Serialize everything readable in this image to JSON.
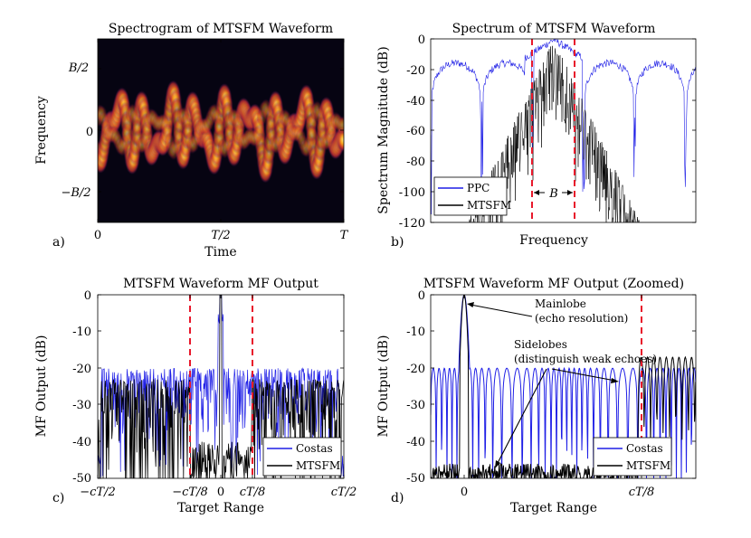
{
  "colors": {
    "blue": "#1f1fe6",
    "black": "#000000",
    "red": "#e8182b"
  },
  "chart_data": [
    {
      "type": "heatmap",
      "panel": "a)",
      "title": "Spectrogram of MTSFM Waveform",
      "xlabel": "Time",
      "ylabel": "Frequency",
      "xticks": [
        "0",
        "T/2",
        "T"
      ],
      "yticks": [
        "B/2",
        "0",
        "−B/2"
      ],
      "xlim": [
        0,
        1
      ],
      "ylim": [
        -0.6,
        0.6
      ]
    },
    {
      "type": "line",
      "panel": "b)",
      "title": "Spectrum of MTSFM Waveform",
      "xlabel": "Frequency",
      "ylabel": "Spectrum Magnitude (dB)",
      "ylim": [
        -120,
        0
      ],
      "yticks": [
        "0",
        "-20",
        "-40",
        "-60",
        "-80",
        "-100",
        "-120"
      ],
      "series": [
        {
          "name": "PPC",
          "color": "blue"
        },
        {
          "name": "MTSFM",
          "color": "black"
        }
      ],
      "annotations": [
        "B"
      ],
      "markers": [
        -0.5,
        0.5
      ]
    },
    {
      "type": "line",
      "panel": "c)",
      "title": "MTSFM Waveform MF Output",
      "xlabel": "Target Range",
      "ylabel": "MF Output (dB)",
      "ylim": [
        -50,
        0
      ],
      "yticks": [
        "0",
        "-10",
        "-20",
        "-30",
        "-40",
        "-50"
      ],
      "xticks": [
        "−cT/2",
        "−cT/8",
        "0",
        "cT/8",
        "cT/2"
      ],
      "series": [
        {
          "name": "Costas",
          "color": "blue"
        },
        {
          "name": "MTSFM",
          "color": "black"
        }
      ],
      "markers": [
        -0.125,
        0.125
      ]
    },
    {
      "type": "line",
      "panel": "d)",
      "title": "MTSFM Waveform MF Output (Zoomed)",
      "xlabel": "Target Range",
      "ylabel": "MF Output (dB)",
      "ylim": [
        -50,
        0
      ],
      "yticks": [
        "0",
        "-10",
        "-20",
        "-30",
        "-40",
        "-50"
      ],
      "xticks": [
        "0",
        "cT/8"
      ],
      "series": [
        {
          "name": "Costas",
          "color": "blue"
        },
        {
          "name": "MTSFM",
          "color": "black"
        }
      ],
      "annotations": [
        "Mainlobe",
        "(echo resolution)",
        "Sidelobes",
        "(distinguish weak echoes)"
      ],
      "markers": [
        0.125
      ]
    }
  ]
}
